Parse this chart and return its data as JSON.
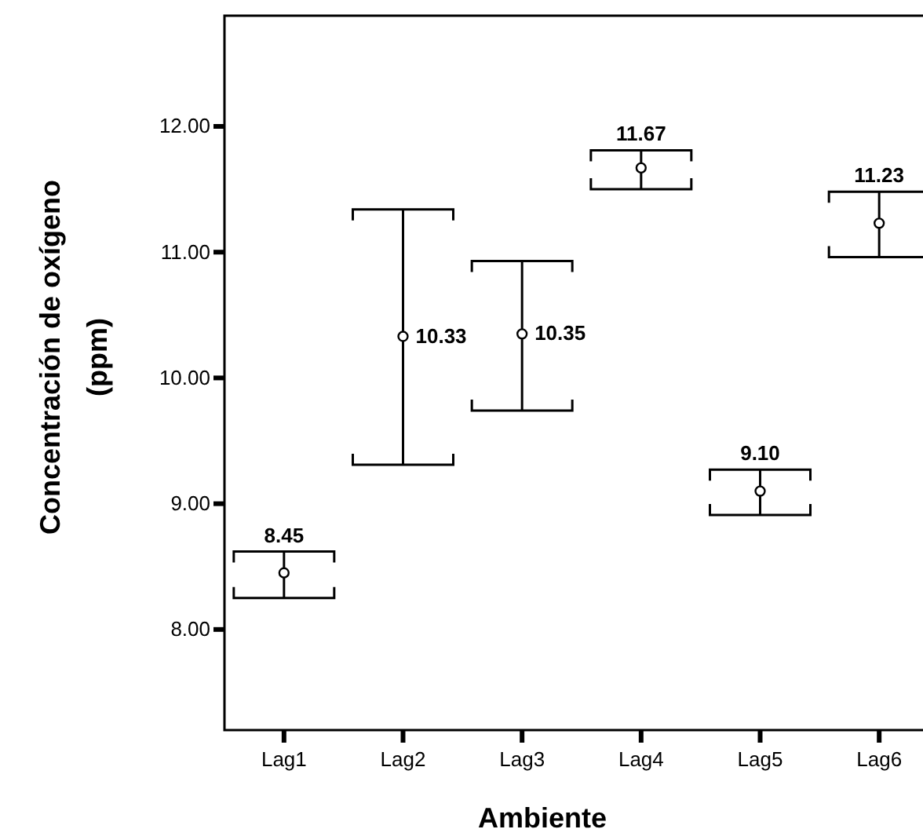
{
  "chart_data": {
    "type": "scatter",
    "xlabel": "Ambiente",
    "ylabel": "Concentración de oxígeno (ppm)",
    "categories": [
      "Lag1",
      "Lag2",
      "Lag3",
      "Lag4",
      "Lag5",
      "Lag6"
    ],
    "values": [
      8.45,
      10.33,
      10.35,
      11.67,
      9.1,
      11.23
    ],
    "errors": [
      [
        8.25,
        8.62
      ],
      [
        9.31,
        11.34
      ],
      [
        9.74,
        10.93
      ],
      [
        11.5,
        11.81
      ],
      [
        8.91,
        9.27
      ],
      [
        10.96,
        11.48
      ]
    ],
    "value_labels": [
      "8.45",
      "10.33",
      "10.35",
      "11.67",
      "9.10",
      "11.23"
    ],
    "color": "#000000",
    "marker": "circle",
    "ylim": [
      7.2,
      12.88
    ],
    "yticks": [
      {
        "value": 8,
        "label": "8.00"
      },
      {
        "value": 9,
        "label": "9.00"
      },
      {
        "value": 10,
        "label": "10.00"
      },
      {
        "value": 11,
        "label": "11.00"
      },
      {
        "value": 12,
        "label": "12.00"
      }
    ],
    "grid": false
  }
}
